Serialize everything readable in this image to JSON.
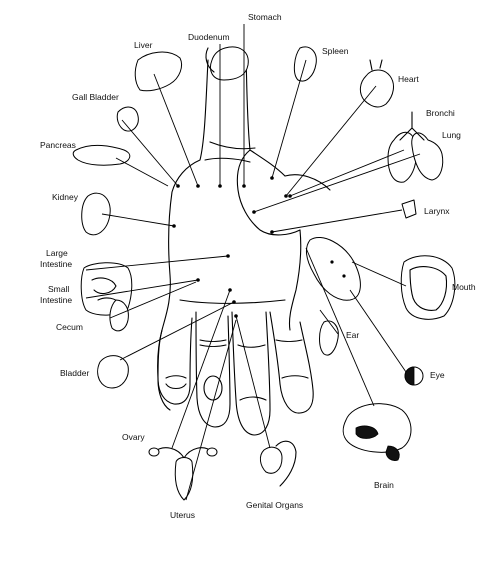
{
  "labels": {
    "stomach": "Stomach",
    "duodenum": "Duodenum",
    "liver": "Liver",
    "spleen": "Spleen",
    "heart": "Heart",
    "gall_bladder": "Gall Bladder",
    "bronchi": "Bronchi",
    "lung": "Lung",
    "pancreas": "Pancreas",
    "kidney": "Kidney",
    "larynx": "Larynx",
    "large_intestine_1": "Large",
    "large_intestine_2": "Intestine",
    "small_intestine_1": "Small",
    "small_intestine_2": "Intestine",
    "mouth": "Mouth",
    "cecum": "Cecum",
    "ear": "Ear",
    "bladder": "Bladder",
    "eye": "Eye",
    "ovary": "Ovary",
    "brain": "Brain",
    "genital_organs": "Genital Organs",
    "uterus": "Uterus"
  }
}
